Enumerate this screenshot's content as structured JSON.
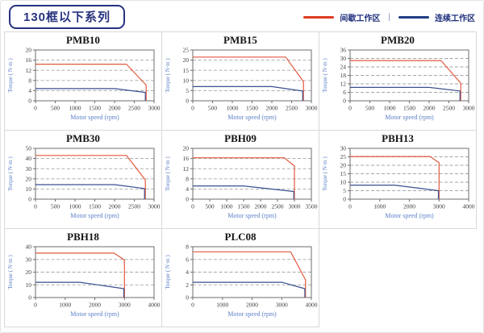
{
  "header": {
    "title": "130框以下系列",
    "legend_separator": "|",
    "legend": [
      {
        "label": "间歇工作区",
        "color": "#dd3a20"
      },
      {
        "label": "连续工作区",
        "color": "#1f3d85"
      }
    ]
  },
  "chart_data": [
    {
      "type": "line",
      "title": "PMB10",
      "xlabel": "Motor speed (rpm)",
      "ylabel": "Torque ( N·m )",
      "xlim": [
        0,
        3000
      ],
      "xticks": [
        0,
        500,
        1000,
        1500,
        2000,
        2500,
        3000
      ],
      "ylim": [
        0,
        20
      ],
      "yticks": [
        0,
        4,
        8,
        12,
        16,
        20
      ],
      "grid": "horizontal-dashed",
      "series": [
        {
          "name": "间歇工作区",
          "color": "#e2593f",
          "points": [
            [
              0,
              14.4
            ],
            [
              2300,
              14.4
            ],
            [
              2800,
              6.2
            ],
            [
              2800,
              0
            ]
          ]
        },
        {
          "name": "连续工作区",
          "color": "#3a4f8f",
          "points": [
            [
              0,
              4.8
            ],
            [
              2000,
              4.8
            ],
            [
              2780,
              3.3
            ],
            [
              2780,
              0
            ]
          ]
        }
      ]
    },
    {
      "type": "line",
      "title": "PMB15",
      "xlabel": "Motor speed (rpm)",
      "ylabel": "Torque ( N·m )",
      "xlim": [
        0,
        3000
      ],
      "xticks": [
        0,
        500,
        1000,
        1500,
        2000,
        2500,
        3000
      ],
      "ylim": [
        0,
        25
      ],
      "yticks": [
        0,
        5,
        10,
        15,
        20,
        25
      ],
      "grid": "horizontal-dashed",
      "series": [
        {
          "name": "间歇工作区",
          "color": "#e2593f",
          "points": [
            [
              0,
              21.5
            ],
            [
              2350,
              21.5
            ],
            [
              2800,
              9.5
            ],
            [
              2800,
              0
            ]
          ]
        },
        {
          "name": "连续工作区",
          "color": "#3a4f8f",
          "points": [
            [
              0,
              7
            ],
            [
              2000,
              7
            ],
            [
              2780,
              4.8
            ],
            [
              2780,
              0
            ]
          ]
        }
      ]
    },
    {
      "type": "line",
      "title": "PMB20",
      "xlabel": "Motor speed (rpm)",
      "ylabel": "Torque ( N·m )",
      "xlim": [
        0,
        3000
      ],
      "xticks": [
        0,
        500,
        1000,
        1500,
        2000,
        2500,
        3000
      ],
      "ylim": [
        0,
        36
      ],
      "yticks": [
        0,
        6,
        12,
        18,
        24,
        30,
        36
      ],
      "grid": "horizontal-dashed",
      "series": [
        {
          "name": "间歇工作区",
          "color": "#e2593f",
          "points": [
            [
              0,
              28.5
            ],
            [
              2300,
              28.5
            ],
            [
              2800,
              12.5
            ],
            [
              2800,
              0
            ]
          ]
        },
        {
          "name": "连续工作区",
          "color": "#3a4f8f",
          "points": [
            [
              0,
              9.5
            ],
            [
              2000,
              9.5
            ],
            [
              2780,
              7
            ],
            [
              2780,
              0
            ]
          ]
        }
      ]
    },
    {
      "type": "line",
      "title": "PMB30",
      "xlabel": "Motor speed (rpm)",
      "ylabel": "Torque ( N·m )",
      "xlim": [
        0,
        3000
      ],
      "xticks": [
        0,
        500,
        1000,
        1500,
        2000,
        2500,
        3000
      ],
      "ylim": [
        0,
        50
      ],
      "yticks": [
        0,
        10,
        20,
        30,
        40,
        50
      ],
      "grid": "horizontal-dashed",
      "series": [
        {
          "name": "间歇工作区",
          "color": "#e2593f",
          "points": [
            [
              0,
              43
            ],
            [
              2300,
              43
            ],
            [
              2780,
              19
            ],
            [
              2780,
              0
            ]
          ]
        },
        {
          "name": "连续工作区",
          "color": "#3a4f8f",
          "points": [
            [
              0,
              14.3
            ],
            [
              2000,
              14.3
            ],
            [
              2760,
              10.5
            ],
            [
              2760,
              0
            ]
          ]
        }
      ]
    },
    {
      "type": "line",
      "title": "PBH09",
      "xlabel": "Motor speed (rpm)",
      "ylabel": "Torque ( N·m )",
      "xlim": [
        0,
        3500
      ],
      "xticks": [
        0,
        500,
        1000,
        1500,
        2000,
        2500,
        3000,
        3500
      ],
      "ylim": [
        0,
        20
      ],
      "yticks": [
        0,
        4,
        8,
        12,
        16,
        20
      ],
      "grid": "horizontal-dashed",
      "series": [
        {
          "name": "间歇工作区",
          "color": "#e2593f",
          "points": [
            [
              0,
              16.3
            ],
            [
              2700,
              16.3
            ],
            [
              3000,
              13
            ],
            [
              3000,
              0
            ]
          ]
        },
        {
          "name": "连续工作区",
          "color": "#3a4f8f",
          "points": [
            [
              0,
              5.2
            ],
            [
              1500,
              5.2
            ],
            [
              2980,
              3
            ],
            [
              2980,
              0
            ]
          ]
        }
      ]
    },
    {
      "type": "line",
      "title": "PBH13",
      "xlabel": "Motor speed (rpm)",
      "ylabel": "Torque ( N·m )",
      "xlim": [
        0,
        4000
      ],
      "xticks": [
        0,
        1000,
        2000,
        3000,
        4000
      ],
      "ylim": [
        0,
        30
      ],
      "yticks": [
        0,
        5,
        10,
        15,
        20,
        25,
        30
      ],
      "grid": "horizontal-dashed",
      "series": [
        {
          "name": "间歇工作区",
          "color": "#e2593f",
          "points": [
            [
              0,
              25.2
            ],
            [
              2700,
              25.2
            ],
            [
              3000,
              21.5
            ],
            [
              3000,
              0
            ]
          ]
        },
        {
          "name": "连续工作区",
          "color": "#3a4f8f",
          "points": [
            [
              0,
              8.3
            ],
            [
              1500,
              8.3
            ],
            [
              2980,
              5
            ],
            [
              2980,
              0
            ]
          ]
        }
      ]
    },
    {
      "type": "line",
      "title": "PBH18",
      "xlabel": "Motor speed (rpm)",
      "ylabel": "Torque ( N·m )",
      "xlim": [
        0,
        4000
      ],
      "xticks": [
        0,
        1000,
        2000,
        3000,
        4000
      ],
      "ylim": [
        0,
        40
      ],
      "yticks": [
        0,
        10,
        20,
        30,
        40
      ],
      "grid": "horizontal-dashed",
      "series": [
        {
          "name": "间歇工作区",
          "color": "#e2593f",
          "points": [
            [
              0,
              35
            ],
            [
              2650,
              35
            ],
            [
              3000,
              29.5
            ],
            [
              3000,
              0
            ]
          ]
        },
        {
          "name": "连续工作区",
          "color": "#3a4f8f",
          "points": [
            [
              0,
              12
            ],
            [
              1500,
              12
            ],
            [
              2980,
              7
            ],
            [
              2980,
              0
            ]
          ]
        }
      ]
    },
    {
      "type": "line",
      "title": "PLC08",
      "xlabel": "Motor speed (rpm)",
      "ylabel": "Torque ( N·m )",
      "xlim": [
        0,
        4000
      ],
      "xticks": [
        0,
        1000,
        2000,
        3000,
        4000
      ],
      "ylim": [
        0,
        8
      ],
      "yticks": [
        0,
        2,
        4,
        6,
        8
      ],
      "grid": "horizontal-dashed",
      "series": [
        {
          "name": "间歇工作区",
          "color": "#e2593f",
          "points": [
            [
              0,
              7.2
            ],
            [
              3300,
              7.2
            ],
            [
              3800,
              2.8
            ],
            [
              3800,
              0
            ]
          ]
        },
        {
          "name": "连续工作区",
          "color": "#3a4f8f",
          "points": [
            [
              0,
              2.4
            ],
            [
              3000,
              2.4
            ],
            [
              3780,
              1.4
            ],
            [
              3780,
              0
            ]
          ]
        }
      ]
    }
  ]
}
